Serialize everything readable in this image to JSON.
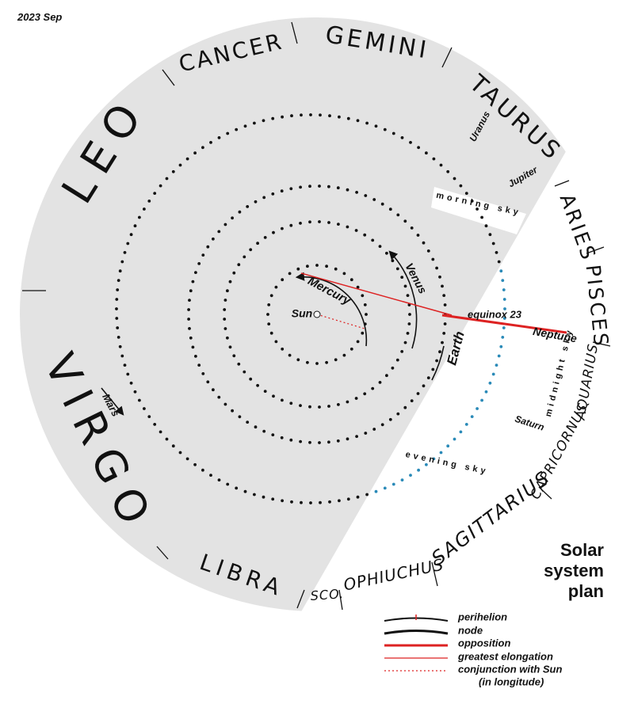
{
  "header": {
    "date": "2023 Sep"
  },
  "title": "Solar system plan",
  "constellations": [
    "LEO",
    "CANCER",
    "GEMINI",
    "TAURUS",
    "ARIES",
    "PISCES",
    "AQUARIUS",
    "CAPRICORNUS",
    "SAGITTARIUS",
    "OPHIUCHUS",
    "SCO.",
    "LIBRA",
    "VIRGO"
  ],
  "bodies": [
    "Sun",
    "Mercury",
    "Venus",
    "Earth",
    "Mars",
    "Uranus",
    "Jupiter",
    "Neptune",
    "Saturn"
  ],
  "sky": [
    "morning sky",
    "evening sky",
    "midnight sky"
  ],
  "annotation": "equinox 23",
  "legend": [
    "perihelion",
    "node",
    "opposition",
    "greatest elongation",
    "conjunction with Sun",
    "(in longitude)"
  ]
}
